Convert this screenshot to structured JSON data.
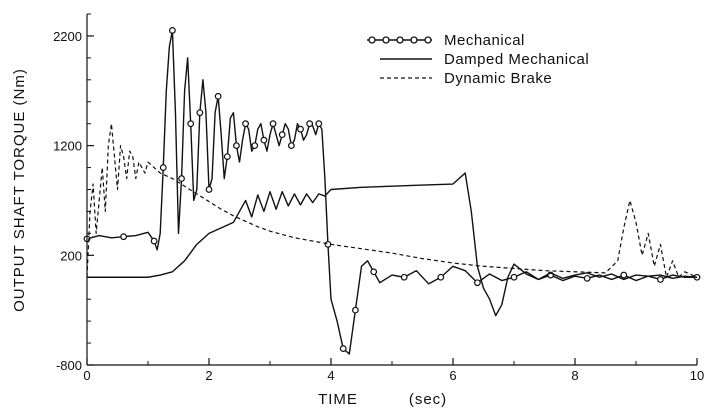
{
  "chart_data": {
    "type": "line",
    "title": "",
    "xlabel": "TIME",
    "xlabel_unit": "(sec)",
    "ylabel": "OUTPUT SHAFT TORQUE (Nm)",
    "xlim": [
      0,
      10
    ],
    "ylim": [
      -800,
      2400
    ],
    "x_ticks": [
      0,
      2,
      4,
      6,
      8,
      10
    ],
    "y_ticks": [
      -800,
      200,
      1200,
      2200
    ],
    "x_tick_labels": [
      "0",
      "2",
      "4",
      "6",
      "8",
      "10"
    ],
    "y_tick_labels": [
      "-800",
      "200",
      "1200",
      "2200"
    ],
    "grid": false,
    "legend_position": "top-right",
    "series": [
      {
        "name": "Mechanical",
        "style": "solid-circles",
        "x": [
          0,
          0.2,
          0.4,
          0.6,
          0.8,
          1.0,
          1.1,
          1.15,
          1.2,
          1.25,
          1.3,
          1.35,
          1.4,
          1.45,
          1.5,
          1.55,
          1.6,
          1.65,
          1.7,
          1.75,
          1.8,
          1.85,
          1.9,
          1.95,
          2.0,
          2.05,
          2.1,
          2.15,
          2.2,
          2.25,
          2.3,
          2.35,
          2.4,
          2.45,
          2.5,
          2.55,
          2.6,
          2.65,
          2.7,
          2.75,
          2.8,
          2.85,
          2.9,
          2.95,
          3.0,
          3.05,
          3.1,
          3.15,
          3.2,
          3.25,
          3.3,
          3.35,
          3.4,
          3.45,
          3.5,
          3.55,
          3.6,
          3.65,
          3.7,
          3.75,
          3.8,
          3.85,
          3.9,
          3.95,
          4.0,
          4.1,
          4.2,
          4.3,
          4.35,
          4.4,
          4.5,
          4.6,
          4.7,
          4.8,
          5.0,
          5.2,
          5.4,
          5.6,
          5.8,
          6.0,
          6.2,
          6.4,
          6.6,
          6.8,
          7.0,
          7.2,
          7.4,
          7.6,
          7.8,
          8.0,
          8.2,
          8.4,
          8.6,
          8.8,
          9.0,
          9.2,
          9.4,
          9.6,
          9.8,
          10.0
        ],
        "y": [
          350,
          380,
          360,
          370,
          380,
          410,
          330,
          250,
          400,
          1000,
          1700,
          2100,
          2250,
          1500,
          400,
          900,
          1700,
          2000,
          1400,
          700,
          800,
          1500,
          1800,
          1500,
          800,
          900,
          1500,
          1650,
          1300,
          900,
          1100,
          1450,
          1500,
          1200,
          1050,
          1250,
          1400,
          1350,
          1150,
          1200,
          1350,
          1400,
          1250,
          1150,
          1300,
          1400,
          1300,
          1200,
          1300,
          1400,
          1350,
          1200,
          1250,
          1400,
          1350,
          1250,
          1300,
          1400,
          1380,
          1300,
          1400,
          1350,
          900,
          300,
          -200,
          -400,
          -650,
          -700,
          -500,
          -300,
          100,
          150,
          50,
          -50,
          20,
          0,
          60,
          -60,
          0,
          100,
          60,
          -50,
          30,
          -30,
          0,
          50,
          -20,
          20,
          -30,
          10,
          -10,
          20,
          -20,
          20,
          -30,
          10,
          -20,
          20,
          0,
          0
        ]
      },
      {
        "name": "Damped Mechanical",
        "style": "solid",
        "x": [
          0,
          0.5,
          1.0,
          1.2,
          1.4,
          1.6,
          1.8,
          2.0,
          2.2,
          2.4,
          2.5,
          2.6,
          2.7,
          2.8,
          2.9,
          3.0,
          3.1,
          3.2,
          3.3,
          3.4,
          3.5,
          3.6,
          3.7,
          3.8,
          3.9,
          4.0,
          4.5,
          5.0,
          5.5,
          6.0,
          6.1,
          6.2,
          6.3,
          6.4,
          6.5,
          6.6,
          6.7,
          6.8,
          6.9,
          7.0,
          7.2,
          7.4,
          7.6,
          7.8,
          8.0,
          8.2,
          8.4,
          8.6,
          8.8,
          9.0,
          9.2,
          9.4,
          9.6,
          9.8,
          10.0
        ],
        "y": [
          0,
          0,
          0,
          20,
          50,
          150,
          300,
          400,
          450,
          500,
          600,
          700,
          550,
          750,
          600,
          780,
          620,
          780,
          650,
          760,
          660,
          760,
          680,
          760,
          740,
          800,
          820,
          830,
          840,
          850,
          900,
          950,
          600,
          100,
          -100,
          -200,
          -350,
          -250,
          0,
          120,
          30,
          -20,
          40,
          -10,
          20,
          40,
          0,
          30,
          -20,
          20,
          10,
          20,
          -10,
          10,
          0
        ]
      },
      {
        "name": "Dynamic Brake",
        "style": "dashed",
        "x": [
          0,
          0.05,
          0.1,
          0.15,
          0.2,
          0.25,
          0.3,
          0.35,
          0.4,
          0.45,
          0.5,
          0.55,
          0.6,
          0.65,
          0.7,
          0.75,
          0.8,
          0.85,
          0.9,
          0.95,
          1.0,
          1.1,
          1.2,
          1.4,
          1.6,
          1.8,
          2.0,
          2.2,
          2.4,
          2.6,
          2.8,
          3.0,
          3.2,
          3.4,
          3.6,
          3.8,
          4.0,
          4.5,
          5.0,
          5.5,
          6.0,
          6.5,
          7.0,
          7.5,
          8.0,
          8.5,
          8.7,
          8.8,
          8.9,
          9.0,
          9.1,
          9.2,
          9.3,
          9.4,
          9.5,
          9.6,
          9.7,
          9.8,
          10.0
        ],
        "y": [
          0,
          600,
          850,
          400,
          700,
          1000,
          600,
          1200,
          1400,
          1100,
          800,
          1200,
          1100,
          900,
          1150,
          1100,
          900,
          1050,
          1000,
          950,
          1050,
          1000,
          950,
          900,
          830,
          760,
          690,
          620,
          560,
          510,
          460,
          420,
          390,
          360,
          340,
          320,
          300,
          260,
          220,
          170,
          130,
          100,
          80,
          60,
          50,
          40,
          150,
          450,
          700,
          500,
          200,
          400,
          100,
          300,
          0,
          150,
          0,
          50,
          0
        ]
      }
    ]
  },
  "legend": {
    "items": [
      {
        "label": "Mechanical"
      },
      {
        "label": "Damped Mechanical"
      },
      {
        "label": "Dynamic Brake"
      }
    ]
  },
  "axes": {
    "xlabel": "TIME",
    "xunit": "(sec)",
    "ylabel": "OUTPUT SHAFT TORQUE (Nm)"
  }
}
